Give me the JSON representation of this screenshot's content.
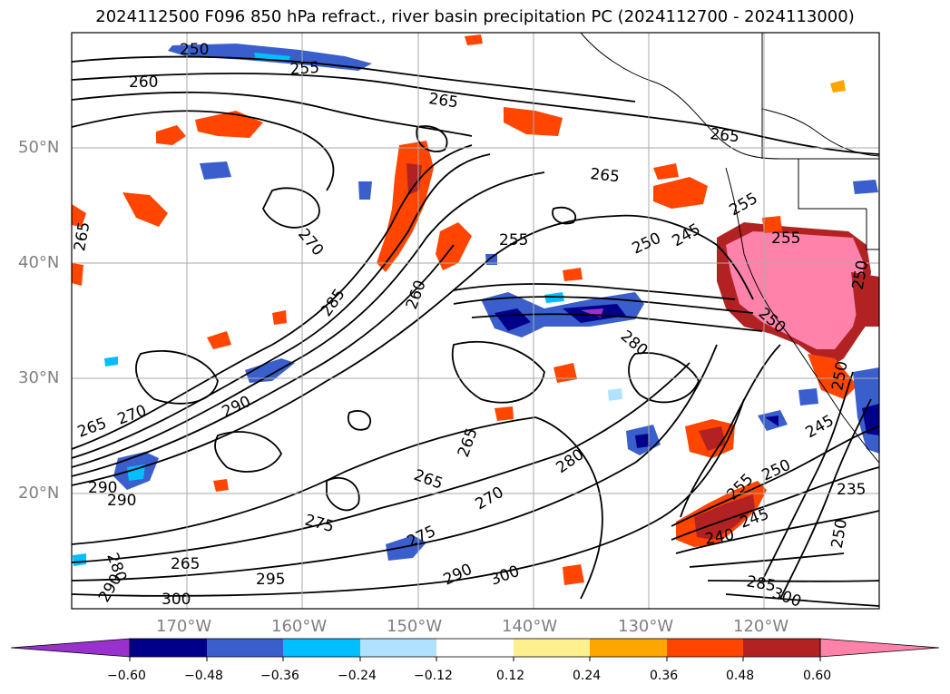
{
  "title": "2024112500 F096 850 hPa refract., river basin precipitation PC (2024112700 - 2024113000)",
  "lat_labels": [
    "50°N",
    "40°N",
    "30°N",
    "20°N"
  ],
  "lon_labels": [
    "170°W",
    "160°W",
    "150°W",
    "140°W",
    "130°W",
    "120°W"
  ],
  "contour_labels": [
    "250",
    "255",
    "260",
    "265",
    "265",
    "265",
    "265",
    "270",
    "285",
    "260",
    "255",
    "250",
    "245",
    "280",
    "290",
    "265",
    "270",
    "290",
    "290",
    "265",
    "265",
    "275",
    "280",
    "270",
    "275",
    "265",
    "295",
    "300",
    "300",
    "290",
    "280",
    "290",
    "250",
    "255",
    "250",
    "240",
    "245",
    "235",
    "250",
    "245",
    "285",
    "300",
    "250",
    "255",
    "255",
    "250"
  ],
  "colorbar": {
    "ticks": [
      "−0.60",
      "−0.48",
      "−0.36",
      "−0.24",
      "−0.12",
      "0.12",
      "0.24",
      "0.36",
      "0.48",
      "0.60"
    ],
    "colors": {
      "lt_neg_0_60": "#9932cc",
      "neg_0_60_to_0_48": "#00008b",
      "neg_0_48_to_0_36": "#3a5fcd",
      "neg_0_36_to_0_24": "#00bfff",
      "neg_0_24_to_0_12": "#b0e2ff",
      "neutral": "#ffffff",
      "pos_0_12_to_0_24": "#fff08f",
      "pos_0_24_to_0_36": "#ffa500",
      "pos_0_36_to_0_48": "#ff4500",
      "pos_0_48_to_0_60": "#b22222",
      "gt_0_60": "#ff82ab"
    }
  }
}
